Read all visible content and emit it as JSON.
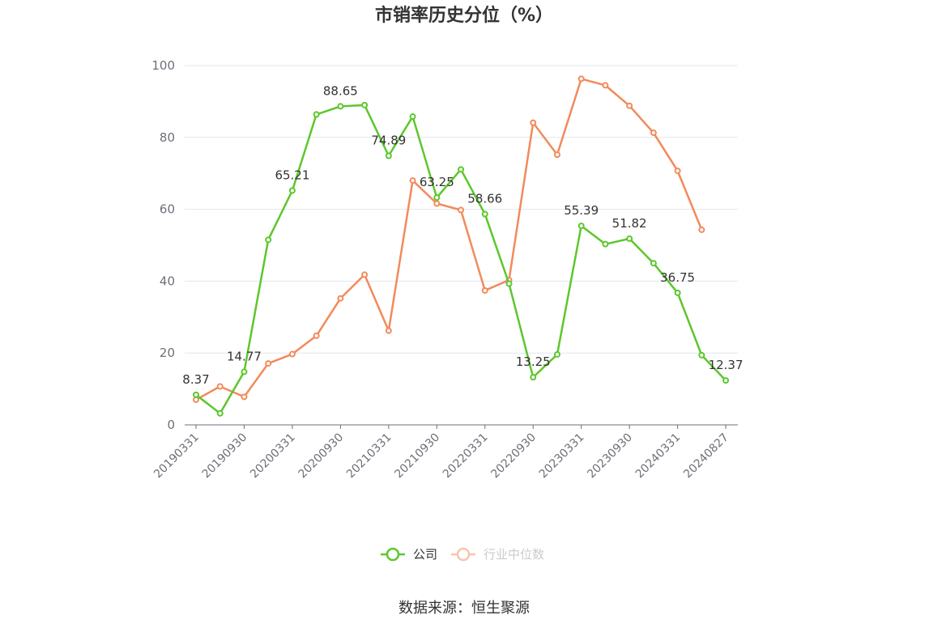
{
  "chart_data": {
    "type": "line",
    "title": "市销率历史分位（%）",
    "source": "数据来源：恒生聚源",
    "ylim": [
      0,
      100
    ],
    "yticks": [
      0,
      20,
      40,
      60,
      80,
      100
    ],
    "x": [
      "20190331",
      "20190630",
      "20190930",
      "20191231",
      "20200331",
      "20200630",
      "20200930",
      "20201231",
      "20210331",
      "20210630",
      "20210930",
      "20211231",
      "20220331",
      "20220630",
      "20220930",
      "20221231",
      "20230331",
      "20230630",
      "20230930",
      "20231231",
      "20240331",
      "20240630",
      "20240827"
    ],
    "xtick_labels": [
      "20190331",
      "20190930",
      "20200331",
      "20200930",
      "20210331",
      "20210930",
      "20220331",
      "20220930",
      "20230331",
      "20230930",
      "20240331",
      "20240827"
    ],
    "grid": true,
    "legend_position": "bottom",
    "series": [
      {
        "name": "公司",
        "color": "#5cc72c",
        "values": [
          8.37,
          3.2,
          14.77,
          51.5,
          65.21,
          86.4,
          88.65,
          89.0,
          74.89,
          85.8,
          63.25,
          71.1,
          58.66,
          39.3,
          13.25,
          19.6,
          55.39,
          50.3,
          51.82,
          45.0,
          36.75,
          19.4,
          12.37
        ],
        "labeled_values": [
          {
            "index": 0,
            "text": "8.37"
          },
          {
            "index": 2,
            "text": "14.77"
          },
          {
            "index": 4,
            "text": "65.21"
          },
          {
            "index": 6,
            "text": "88.65"
          },
          {
            "index": 8,
            "text": "74.89"
          },
          {
            "index": 10,
            "text": "63.25"
          },
          {
            "index": 12,
            "text": "58.66"
          },
          {
            "index": 14,
            "text": "13.25"
          },
          {
            "index": 16,
            "text": "55.39"
          },
          {
            "index": 18,
            "text": "51.82"
          },
          {
            "index": 20,
            "text": "36.75"
          },
          {
            "index": 22,
            "text": "12.37"
          }
        ]
      },
      {
        "name": "行业中位数",
        "color": "#f28a5b",
        "values": [
          7.0,
          10.7,
          7.8,
          17.1,
          19.7,
          24.8,
          35.2,
          41.8,
          26.2,
          68.0,
          61.6,
          59.8,
          37.4,
          40.3,
          84.1,
          75.2,
          96.3,
          94.5,
          88.8,
          81.3,
          70.7,
          54.3,
          null
        ]
      }
    ]
  }
}
